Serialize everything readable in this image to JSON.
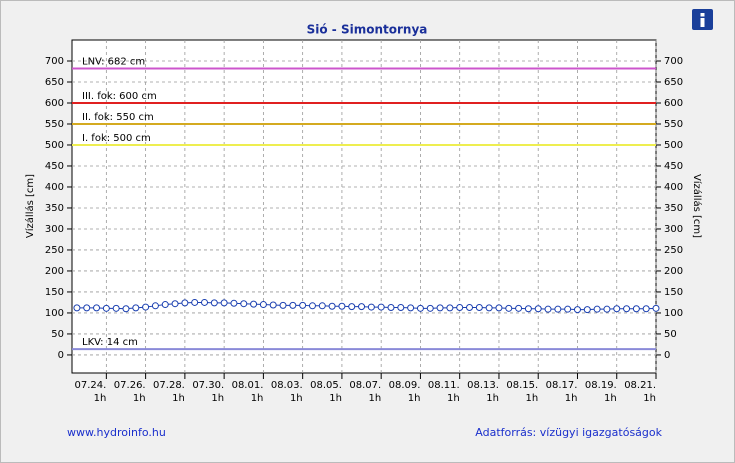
{
  "chart_data": {
    "type": "line",
    "title": "Sió - Simontornya",
    "y_label": "Vízállás [cm]",
    "y2_label": "Vízállás [cm]",
    "footer_left": "www.hydroinfo.hu",
    "footer_right": "Adatforrás: vízügyi igazgatóságok",
    "xlim": [
      "07.22. 7h",
      "08.21. 1h"
    ],
    "ylim": [
      -43,
      750
    ],
    "yticks": [
      0,
      50,
      100,
      150,
      200,
      250,
      300,
      350,
      400,
      450,
      500,
      550,
      600,
      650,
      700
    ],
    "xticks": [
      {
        "value": "07.24. 1h",
        "label": [
          "07.24.",
          "1h"
        ]
      },
      {
        "value": "07.26. 1h",
        "label": [
          "07.26.",
          "1h"
        ]
      },
      {
        "value": "07.28. 1h",
        "label": [
          "07.28.",
          "1h"
        ]
      },
      {
        "value": "07.30. 1h",
        "label": [
          "07.30.",
          "1h"
        ]
      },
      {
        "value": "08.01. 1h",
        "label": [
          "08.01.",
          "1h"
        ]
      },
      {
        "value": "08.03. 1h",
        "label": [
          "08.03.",
          "1h"
        ]
      },
      {
        "value": "08.05. 1h",
        "label": [
          "08.05.",
          "1h"
        ]
      },
      {
        "value": "08.07. 1h",
        "label": [
          "08.07.",
          "1h"
        ]
      },
      {
        "value": "08.09. 1h",
        "label": [
          "08.09.",
          "1h"
        ]
      },
      {
        "value": "08.11. 1h",
        "label": [
          "08.11.",
          "1h"
        ]
      },
      {
        "value": "08.13. 1h",
        "label": [
          "08.13.",
          "1h"
        ]
      },
      {
        "value": "08.15. 1h",
        "label": [
          "08.15.",
          "1h"
        ]
      },
      {
        "value": "08.17. 1h",
        "label": [
          "08.17.",
          "1h"
        ]
      },
      {
        "value": "08.19. 1h",
        "label": [
          "08.19.",
          "1h"
        ]
      },
      {
        "value": "08.21. 1h",
        "label": [
          "08.21.",
          "1h"
        ]
      }
    ],
    "grid": true,
    "reference_lines": [
      {
        "label": "LNV: 682 cm",
        "value": 682,
        "color": "#cc55cc"
      },
      {
        "label": "III. fok: 600 cm",
        "value": 600,
        "color": "#e02020"
      },
      {
        "label": "II. fok: 550 cm",
        "value": 550,
        "color": "#d4aa20"
      },
      {
        "label": "I. fok: 500 cm",
        "value": 500,
        "color": "#eeee50"
      },
      {
        "label": "LKV: 14 cm",
        "value": 14,
        "color": "#8a8ad8"
      }
    ],
    "x": [
      "07.22. 13h",
      "07.23. 1h",
      "07.23. 13h",
      "07.24. 1h",
      "07.24. 13h",
      "07.25. 1h",
      "07.25. 13h",
      "07.26. 1h",
      "07.26. 13h",
      "07.27. 1h",
      "07.27. 13h",
      "07.28. 1h",
      "07.28. 13h",
      "07.29. 1h",
      "07.29. 13h",
      "07.30. 1h",
      "07.30. 13h",
      "07.31. 1h",
      "07.31. 13h",
      "08.01. 1h",
      "08.01. 13h",
      "08.02. 1h",
      "08.02. 13h",
      "08.03. 1h",
      "08.03. 13h",
      "08.04. 1h",
      "08.04. 13h",
      "08.05. 1h",
      "08.05. 13h",
      "08.06. 1h",
      "08.06. 13h",
      "08.07. 1h",
      "08.07. 13h",
      "08.08. 1h",
      "08.08. 13h",
      "08.09. 1h",
      "08.09. 13h",
      "08.10. 1h",
      "08.10. 13h",
      "08.11. 1h",
      "08.11. 13h",
      "08.12. 1h",
      "08.12. 13h",
      "08.13. 1h",
      "08.13. 13h",
      "08.14. 1h",
      "08.14. 13h",
      "08.15. 1h",
      "08.15. 13h",
      "08.16. 1h",
      "08.16. 13h",
      "08.17. 1h",
      "08.17. 13h",
      "08.18. 1h",
      "08.18. 13h",
      "08.19. 1h",
      "08.19. 13h",
      "08.20. 1h",
      "08.20. 13h",
      "08.21. 1h"
    ],
    "series": [
      {
        "color": "#1a3fb0",
        "values": [
          112,
          112,
          112,
          111,
          111,
          110,
          112,
          114,
          117,
          120,
          122,
          124,
          125,
          125,
          124,
          124,
          123,
          122,
          121,
          120,
          119,
          118,
          118,
          118,
          117,
          117,
          116,
          116,
          115,
          115,
          114,
          114,
          113,
          113,
          112,
          111,
          111,
          112,
          112,
          113,
          113,
          113,
          112,
          112,
          111,
          111,
          110,
          110,
          109,
          109,
          109,
          108,
          108,
          109,
          109,
          110,
          110,
          110,
          110,
          111
        ]
      }
    ]
  }
}
